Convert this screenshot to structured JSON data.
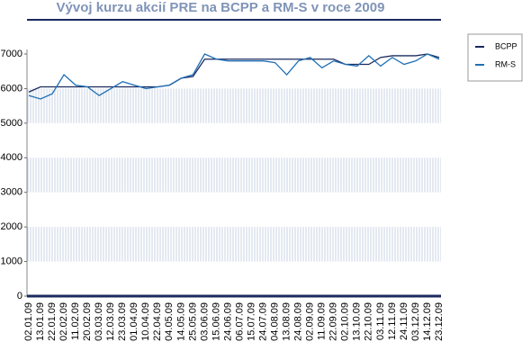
{
  "chart_data": {
    "type": "line",
    "title": "Vývoj kurzu akcií PRE na BCPP a RM-S v roce 2009",
    "categories": [
      "02.01.09",
      "13.01.09",
      "22.01.09",
      "02.02.09",
      "11.02.09",
      "20.02.09",
      "03.03.09",
      "12.03.09",
      "23.03.09",
      "01.04.09",
      "10.04.09",
      "22.04.09",
      "04.05.09",
      "14.05.09",
      "25.05.09",
      "03.06.09",
      "15.06.09",
      "24.06.09",
      "06.07.09",
      "15.07.09",
      "24.07.09",
      "04.08.09",
      "13.08.09",
      "24.08.09",
      "02.09.09",
      "11.09.09",
      "22.09.09",
      "02.10.09",
      "13.10.09",
      "22.10.09",
      "03.11.09",
      "12.11.09",
      "24.11.09",
      "03.12.09",
      "14.12.09",
      "23.12.09"
    ],
    "series": [
      {
        "name": "BCPP",
        "color": "#1a2a5e",
        "values": [
          5900,
          6050,
          6050,
          6050,
          6050,
          6050,
          6050,
          6050,
          6050,
          6050,
          6050,
          6050,
          6100,
          6300,
          6350,
          6850,
          6850,
          6850,
          6850,
          6850,
          6850,
          6850,
          6850,
          6850,
          6850,
          6850,
          6850,
          6700,
          6700,
          6700,
          6900,
          6950,
          6950,
          6950,
          7000,
          6900
        ]
      },
      {
        "name": "RM-S",
        "color": "#1f6fb5",
        "values": [
          5800,
          5700,
          5850,
          6400,
          6100,
          6050,
          5800,
          6000,
          6200,
          6100,
          6000,
          6050,
          6100,
          6300,
          6400,
          7000,
          6850,
          6800,
          6800,
          6800,
          6800,
          6750,
          6400,
          6800,
          6900,
          6600,
          6800,
          6700,
          6650,
          6950,
          6650,
          6900,
          6700,
          6800,
          7000,
          6850
        ]
      }
    ],
    "ylim": [
      0,
      7000
    ],
    "yticks": [
      0,
      1000,
      2000,
      3000,
      4000,
      5000,
      6000,
      7000
    ],
    "legend": "top-right"
  }
}
